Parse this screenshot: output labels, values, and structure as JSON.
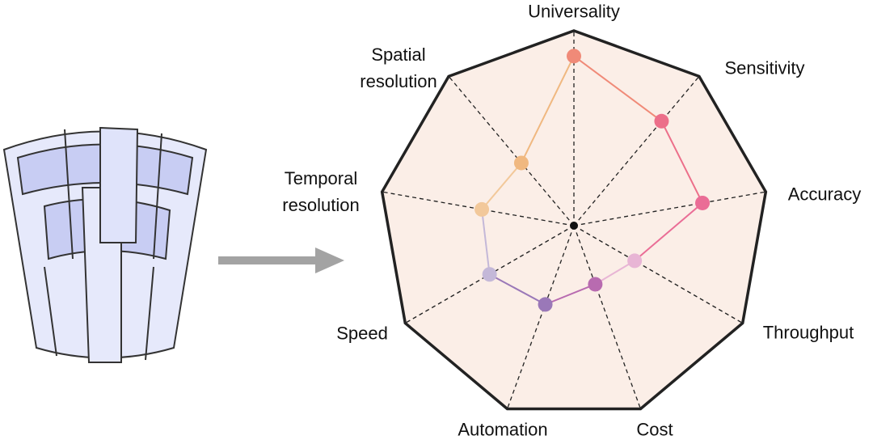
{
  "chart_data": {
    "type": "radar",
    "categories": [
      "Universality",
      "Sensitivity",
      "Accuracy",
      "Throughput",
      "Cost",
      "Automation",
      "Speed",
      "Temporal resolution",
      "Spatial resolution"
    ],
    "values": [
      0.87,
      0.7,
      0.67,
      0.36,
      0.32,
      0.43,
      0.5,
      0.48,
      0.42
    ],
    "colors": [
      "#f08a78",
      "#ec6f8a",
      "#ea6d96",
      "#e8b5d5",
      "#b86bb0",
      "#9a78b8",
      "#c4b8d8",
      "#f2c89a",
      "#f0b880"
    ]
  }
}
